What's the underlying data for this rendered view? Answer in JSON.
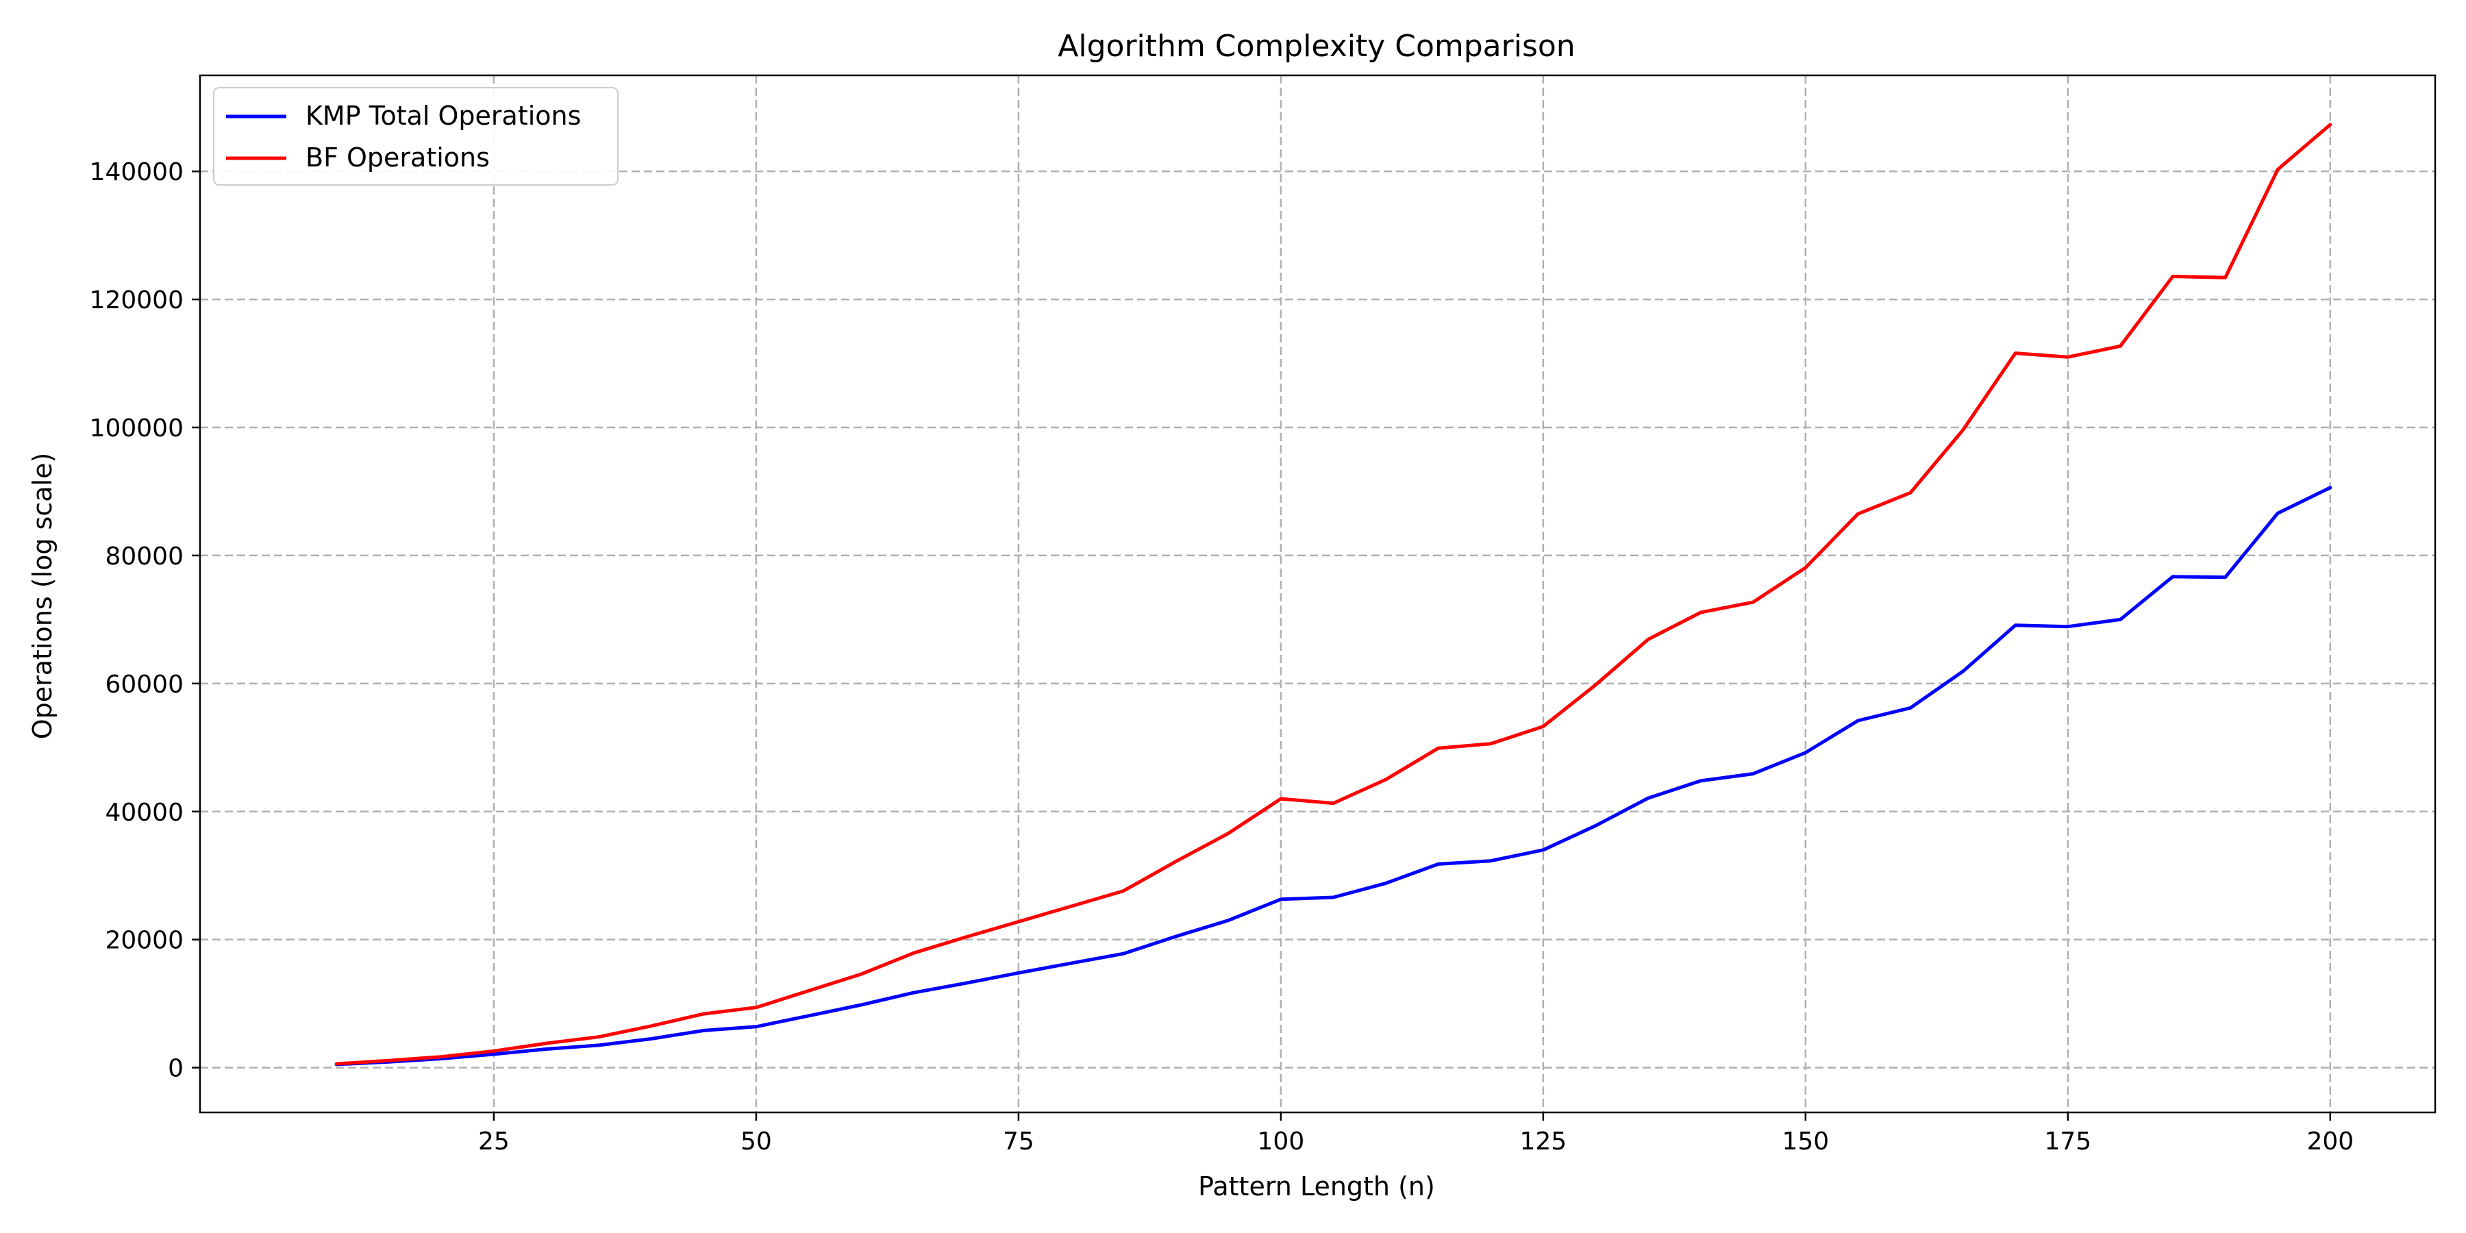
{
  "chart_data": {
    "type": "line",
    "title": "Algorithm Complexity Comparison",
    "xlabel": "Pattern Length (n)",
    "ylabel": "Operations (log scale)",
    "xlim": [
      -3,
      210
    ],
    "ylim": [
      -7000,
      155000
    ],
    "xticks": [
      25,
      50,
      75,
      100,
      125,
      150,
      175,
      200
    ],
    "yticks": [
      0,
      20000,
      40000,
      60000,
      80000,
      100000,
      120000,
      140000
    ],
    "grid": true,
    "grid_style": "dashed",
    "legend_position": "top-left",
    "x": [
      10,
      15,
      20,
      25,
      30,
      35,
      40,
      45,
      50,
      55,
      60,
      65,
      70,
      75,
      80,
      85,
      90,
      95,
      100,
      105,
      110,
      115,
      120,
      125,
      130,
      135,
      140,
      145,
      150,
      155,
      160,
      165,
      170,
      175,
      180,
      185,
      190,
      195,
      200
    ],
    "series": [
      {
        "name": "KMP Total Operations",
        "color": "#0000ff",
        "values": [
          500,
          900,
          1400,
          2100,
          2900,
          3500,
          4500,
          5800,
          6400,
          8100,
          9800,
          11700,
          13200,
          14800,
          16300,
          17800,
          20500,
          23000,
          26300,
          26600,
          28800,
          31800,
          32300,
          34000,
          37800,
          42100,
          44800,
          45900,
          49200,
          54200,
          56200,
          61900,
          69100,
          68900,
          70000,
          76700,
          76600,
          86600,
          90600
        ]
      },
      {
        "name": "BF Operations",
        "color": "#ff0000",
        "values": [
          600,
          1100,
          1700,
          2600,
          3800,
          4800,
          6500,
          8400,
          9400,
          12000,
          14600,
          17900,
          20400,
          22800,
          25200,
          27600,
          32200,
          36600,
          42000,
          41300,
          45000,
          49900,
          50600,
          53300,
          59800,
          66900,
          71100,
          72700,
          78100,
          86500,
          89800,
          99600,
          111600,
          111000,
          112700,
          123600,
          123400,
          140300,
          147300
        ]
      }
    ]
  }
}
